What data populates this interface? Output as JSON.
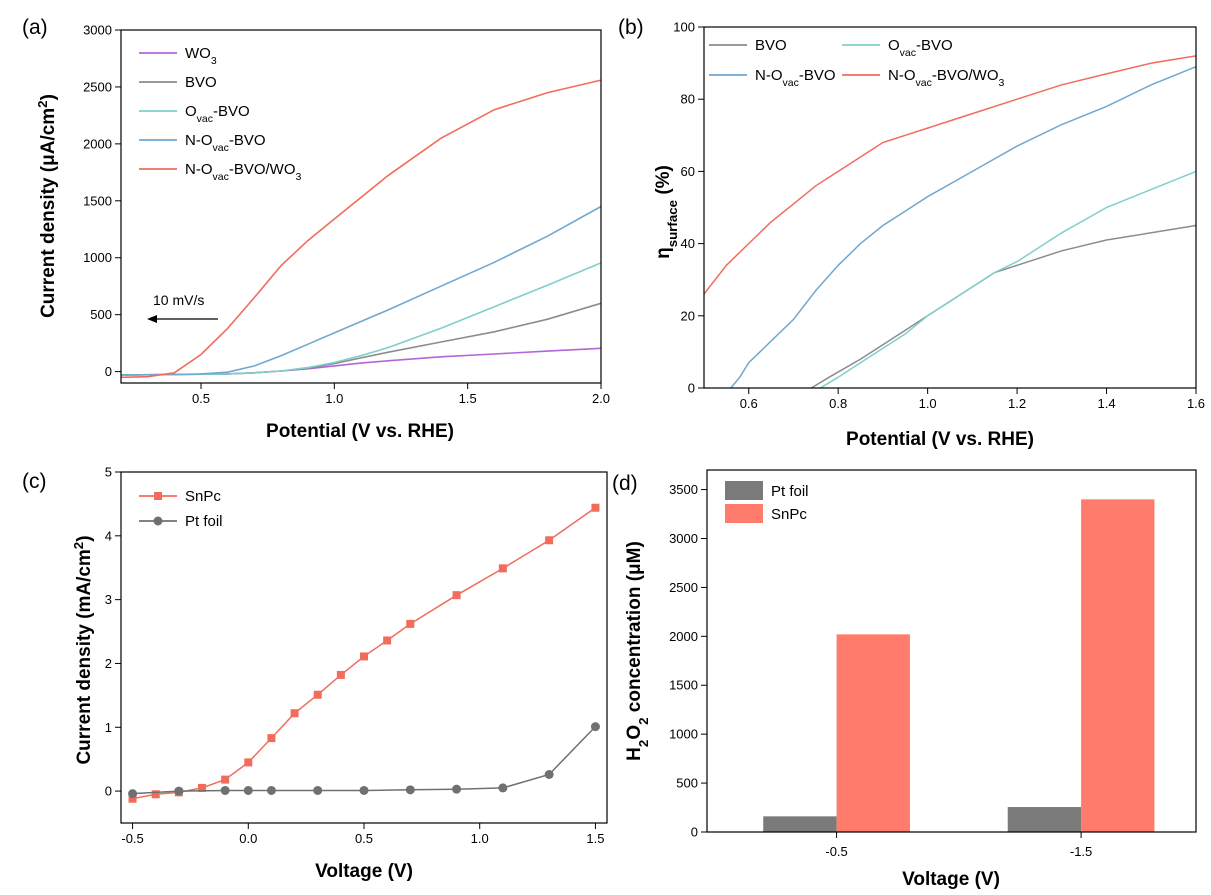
{
  "chart_data": [
    {
      "panel": "(a)",
      "type": "line",
      "xlabel": "Potential (V vs. RHE)",
      "ylabel": "Current density (μA/cm²)",
      "xlim": [
        0.2,
        2.0
      ],
      "ylim": [
        -100,
        3000
      ],
      "xticks": [
        "0.5",
        "1.0",
        "1.5",
        "2.0"
      ],
      "yticks": [
        "0",
        "500",
        "1000",
        "1500",
        "2000",
        "2500",
        "3000"
      ],
      "annotation": "10 mV/s",
      "legend_position": "top-left",
      "series": [
        {
          "name": "WO3",
          "color": "#b366d9",
          "x": [
            0.2,
            0.4,
            0.6,
            0.7,
            0.8,
            0.9,
            1.0,
            1.1,
            1.2,
            1.4,
            1.6,
            1.8,
            2.0
          ],
          "y": [
            -30,
            -25,
            -20,
            -10,
            5,
            25,
            50,
            75,
            95,
            130,
            155,
            180,
            205
          ]
        },
        {
          "name": "BVO",
          "color": "#8c8c8c",
          "x": [
            0.2,
            0.4,
            0.6,
            0.7,
            0.8,
            0.9,
            1.0,
            1.1,
            1.2,
            1.4,
            1.6,
            1.8,
            2.0
          ],
          "y": [
            -30,
            -25,
            -20,
            -10,
            5,
            30,
            70,
            120,
            170,
            260,
            350,
            460,
            600
          ]
        },
        {
          "name": "Ovac-BVO",
          "color": "#7fcfcc",
          "x": [
            0.2,
            0.4,
            0.6,
            0.7,
            0.8,
            0.9,
            1.0,
            1.1,
            1.2,
            1.4,
            1.6,
            1.8,
            2.0
          ],
          "y": [
            -30,
            -25,
            -20,
            -10,
            5,
            35,
            80,
            140,
            210,
            380,
            570,
            760,
            955
          ]
        },
        {
          "name": "N-Ovac-BVO",
          "color": "#6fa8d0",
          "x": [
            0.2,
            0.4,
            0.5,
            0.6,
            0.7,
            0.8,
            0.9,
            1.0,
            1.2,
            1.4,
            1.6,
            1.8,
            2.0
          ],
          "y": [
            -30,
            -25,
            -20,
            -5,
            50,
            140,
            240,
            340,
            540,
            750,
            960,
            1190,
            1450
          ]
        },
        {
          "name": "N-Ovac-BVO/WO3",
          "color": "#f26c5c",
          "x": [
            0.2,
            0.3,
            0.4,
            0.5,
            0.6,
            0.7,
            0.8,
            0.9,
            1.0,
            1.2,
            1.4,
            1.6,
            1.8,
            2.0
          ],
          "y": [
            -50,
            -45,
            -10,
            150,
            380,
            650,
            930,
            1150,
            1340,
            1720,
            2050,
            2300,
            2450,
            2560
          ]
        }
      ]
    },
    {
      "panel": "(b)",
      "type": "line",
      "xlabel": "Potential (V vs. RHE)",
      "ylabel": "ηsurface (%)",
      "xlim": [
        0.5,
        1.6
      ],
      "ylim": [
        0,
        100
      ],
      "xticks": [
        "0.6",
        "0.8",
        "1.0",
        "1.2",
        "1.4",
        "1.6"
      ],
      "yticks": [
        "0",
        "20",
        "40",
        "60",
        "80",
        "100"
      ],
      "legend_position": "top",
      "series": [
        {
          "name": "BVO",
          "color": "#8c8c8c",
          "x": [
            0.74,
            0.78,
            0.85,
            0.9,
            0.95,
            1.0,
            1.05,
            1.1,
            1.15,
            1.2,
            1.3,
            1.4,
            1.5,
            1.6
          ],
          "y": [
            0,
            3,
            8,
            12,
            16,
            20,
            24,
            28,
            32,
            34,
            38,
            41,
            43,
            45
          ]
        },
        {
          "name": "Ovac-BVO",
          "color": "#7fcfcc",
          "x": [
            0.76,
            0.8,
            0.85,
            0.9,
            0.95,
            1.0,
            1.05,
            1.1,
            1.15,
            1.2,
            1.3,
            1.4,
            1.5,
            1.6
          ],
          "y": [
            0,
            3,
            7,
            11,
            15,
            20,
            24,
            28,
            32,
            35,
            43,
            50,
            55,
            60
          ]
        },
        {
          "name": "N-Ovac-BVO",
          "color": "#6fa8d0",
          "x": [
            0.56,
            0.58,
            0.6,
            0.65,
            0.7,
            0.75,
            0.8,
            0.85,
            0.9,
            0.95,
            1.0,
            1.1,
            1.2,
            1.3,
            1.4,
            1.5,
            1.6
          ],
          "y": [
            0,
            3,
            7,
            13,
            19,
            27,
            34,
            40,
            45,
            49,
            53,
            60,
            67,
            73,
            78,
            84,
            89
          ]
        },
        {
          "name": "N-Ovac-BVO/WO3",
          "color": "#f26c5c",
          "x": [
            0.5,
            0.55,
            0.6,
            0.65,
            0.7,
            0.75,
            0.8,
            0.85,
            0.9,
            0.95,
            1.0,
            1.1,
            1.2,
            1.3,
            1.4,
            1.5,
            1.6
          ],
          "y": [
            26,
            34,
            40,
            46,
            51,
            56,
            60,
            64,
            68,
            70,
            72,
            76,
            80,
            84,
            87,
            90,
            92
          ]
        }
      ]
    },
    {
      "panel": "(c)",
      "type": "line",
      "xlabel": "Voltage (V)",
      "ylabel": "Current density (mA/cm²)",
      "xlim": [
        -0.55,
        1.55
      ],
      "ylim": [
        -0.5,
        5
      ],
      "xticks": [
        "-0.5",
        "0.0",
        "0.5",
        "1.0",
        "1.5"
      ],
      "yticks": [
        "0",
        "1",
        "2",
        "3",
        "4",
        "5"
      ],
      "legend_position": "top-left",
      "series": [
        {
          "name": "SnPc",
          "color": "#f26c5c",
          "marker": "square",
          "x": [
            -0.5,
            -0.4,
            -0.3,
            -0.2,
            -0.1,
            0.0,
            0.1,
            0.2,
            0.3,
            0.4,
            0.5,
            0.6,
            0.7,
            0.9,
            1.1,
            1.3,
            1.5
          ],
          "y": [
            -0.12,
            -0.05,
            -0.02,
            0.05,
            0.18,
            0.45,
            0.83,
            1.22,
            1.51,
            1.82,
            2.11,
            2.36,
            2.62,
            3.07,
            3.49,
            3.93,
            4.44
          ]
        },
        {
          "name": "Pt foil",
          "color": "#707070",
          "marker": "circle",
          "x": [
            -0.5,
            -0.3,
            -0.1,
            0.0,
            0.1,
            0.3,
            0.5,
            0.7,
            0.9,
            1.1,
            1.3,
            1.5
          ],
          "y": [
            -0.04,
            0.0,
            0.01,
            0.01,
            0.01,
            0.01,
            0.01,
            0.02,
            0.03,
            0.05,
            0.26,
            1.01
          ]
        }
      ]
    },
    {
      "panel": "(d)",
      "type": "bar",
      "xlabel": "Voltage (V)",
      "ylabel": "H2O2 concentration (μM)",
      "ylim": [
        0,
        3700
      ],
      "categories": [
        "-0.5",
        "-1.5"
      ],
      "yticks": [
        "0",
        "500",
        "1000",
        "1500",
        "2000",
        "2500",
        "3000",
        "3500"
      ],
      "legend_position": "top-left",
      "series": [
        {
          "name": "Pt foil",
          "color": "#7a7a7a",
          "values": [
            160,
            255
          ]
        },
        {
          "name": "SnPc",
          "color": "#ff7b6b",
          "values": [
            2020,
            3400
          ]
        }
      ]
    }
  ]
}
